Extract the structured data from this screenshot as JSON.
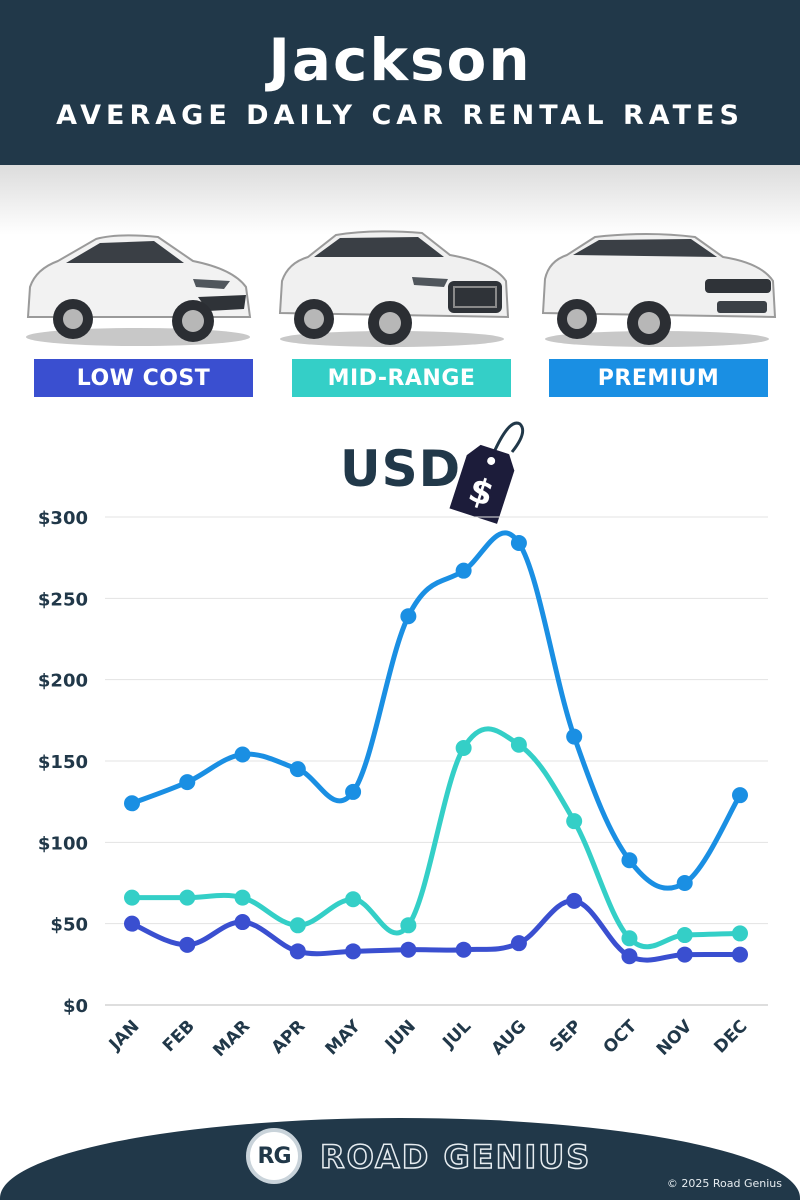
{
  "header": {
    "city": "Jackson",
    "subtitle": "AVERAGE DAILY CAR RENTAL RATES"
  },
  "categories": [
    {
      "label": "LOW COST",
      "color": "#3a4fd0",
      "car_icon": "hatchback-car-icon"
    },
    {
      "label": "MID-RANGE",
      "color": "#34cfc7",
      "car_icon": "audi-suv-car-icon"
    },
    {
      "label": "PREMIUM",
      "color": "#1a8fe3",
      "car_icon": "range-rover-suv-car-icon"
    }
  ],
  "currency": {
    "label": "USD",
    "symbol": "$"
  },
  "chart_data": {
    "type": "line",
    "categories": [
      "JAN",
      "FEB",
      "MAR",
      "APR",
      "MAY",
      "JUN",
      "JUL",
      "AUG",
      "SEP",
      "OCT",
      "NOV",
      "DEC"
    ],
    "y_tick_labels": [
      "$0",
      "$50",
      "$100",
      "$150",
      "$200",
      "$250",
      "$300"
    ],
    "y_ticks": [
      0,
      50,
      100,
      150,
      200,
      250,
      300
    ],
    "ylim": [
      0,
      300
    ],
    "grid": true,
    "series": [
      {
        "name": "LOW COST",
        "color": "#3a4fd0",
        "values": [
          50,
          37,
          51,
          33,
          33,
          34,
          34,
          38,
          64,
          30,
          31,
          31
        ]
      },
      {
        "name": "MID-RANGE",
        "color": "#34cfc7",
        "values": [
          66,
          66,
          66,
          49,
          65,
          49,
          158,
          160,
          113,
          41,
          43,
          44
        ]
      },
      {
        "name": "PREMIUM",
        "color": "#1a8fe3",
        "values": [
          124,
          137,
          154,
          145,
          131,
          239,
          267,
          284,
          165,
          89,
          75,
          129
        ]
      }
    ]
  },
  "footer": {
    "logo_text": "RG",
    "brand": "ROAD GENIUS",
    "copyright": "© 2025 Road Genius"
  }
}
